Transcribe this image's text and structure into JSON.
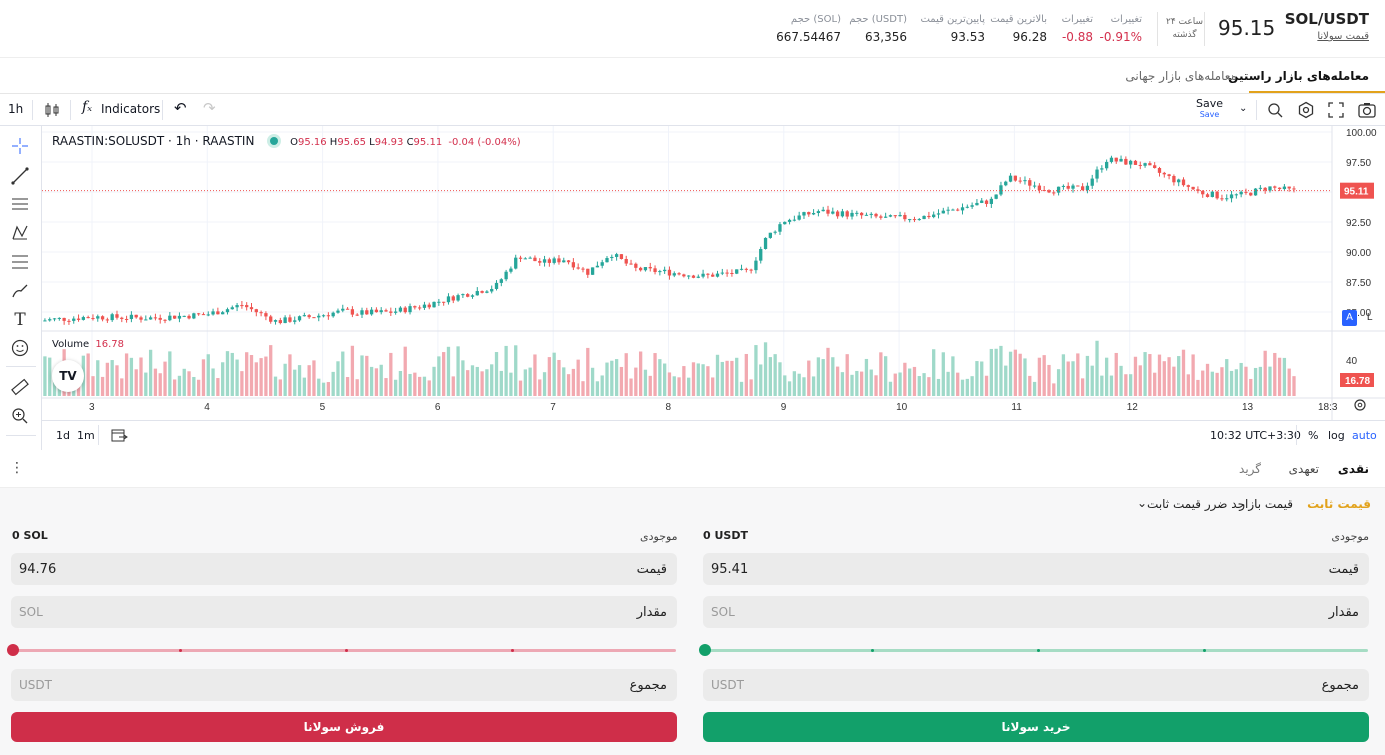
{
  "market": {
    "pair": "SOL/USDT",
    "name_link": "قیمت سولانا",
    "last_price": "95.15",
    "period_label_1": "۲۴ ساعت",
    "period_label_2": "گذشته"
  },
  "stats": [
    {
      "label": "تغییرات",
      "value": "-0.91%",
      "tone": "red"
    },
    {
      "label": "تغییرات",
      "value": "-0.88",
      "tone": "red"
    },
    {
      "label": "بالاترین قیمت",
      "value": "96.28",
      "tone": ""
    },
    {
      "label": "پایین‌ترین قیمت",
      "value": "93.53",
      "tone": ""
    },
    {
      "label": "حجم (USDT)",
      "value": "63,356",
      "tone": ""
    },
    {
      "label": "حجم (SOL)",
      "value": "667.54467",
      "tone": ""
    }
  ],
  "tabs": {
    "active": "معامله‌های بازار راستین",
    "inactive": "معامله‌های بازار جهانی"
  },
  "toolbar": {
    "interval": "1h",
    "indicators": "Indicators",
    "save": "Save",
    "save_sub": "Save"
  },
  "chart_data": {
    "type": "candlestick",
    "symbol_title": "RAASTIN:SOLUSDT · 1h · RAASTIN",
    "ohlc": {
      "o_label": "O",
      "o": "95.16",
      "h_label": "H",
      "h": "95.65",
      "l_label": "L",
      "l": "94.93",
      "c_label": "C",
      "c": "95.11",
      "change": "-0.04 (-0.04%)"
    },
    "price_axis_ticks": [
      "100.00",
      "97.50",
      "95.00",
      "92.50",
      "90.00",
      "87.50",
      "85.00"
    ],
    "ylim": [
      83.5,
      100.5
    ],
    "last_price_label": "95.11",
    "last_price": 95.11,
    "x_tick_labels": [
      "3",
      "4",
      "5",
      "6",
      "7",
      "8",
      "9",
      "10",
      "11",
      "12",
      "13",
      "18:3"
    ],
    "volume_label": "Volume",
    "volume_value": "16.78",
    "volume_axis_tick": "40",
    "volume_last_label": "16.78",
    "close_path": [
      {
        "day": 2.55,
        "close": 84.3
      },
      {
        "day": 3.0,
        "close": 84.6
      },
      {
        "day": 3.5,
        "close": 84.5
      },
      {
        "day": 4.0,
        "close": 84.8
      },
      {
        "day": 4.3,
        "close": 85.6
      },
      {
        "day": 4.6,
        "close": 84.2
      },
      {
        "day": 4.9,
        "close": 84.6
      },
      {
        "day": 5.2,
        "close": 85.1
      },
      {
        "day": 5.3,
        "close": 84.9
      },
      {
        "day": 5.6,
        "close": 85.0
      },
      {
        "day": 5.9,
        "close": 85.6
      },
      {
        "day": 6.2,
        "close": 86.4
      },
      {
        "day": 6.5,
        "close": 87.1
      },
      {
        "day": 6.7,
        "close": 89.7
      },
      {
        "day": 6.9,
        "close": 89.1
      },
      {
        "day": 7.1,
        "close": 89.4
      },
      {
        "day": 7.3,
        "close": 88.3
      },
      {
        "day": 7.5,
        "close": 89.9
      },
      {
        "day": 7.7,
        "close": 88.6
      },
      {
        "day": 8.0,
        "close": 88.3
      },
      {
        "day": 8.3,
        "close": 88.0
      },
      {
        "day": 8.7,
        "close": 88.4
      },
      {
        "day": 8.85,
        "close": 91.2
      },
      {
        "day": 9.0,
        "close": 92.6
      },
      {
        "day": 9.3,
        "close": 93.4
      },
      {
        "day": 9.6,
        "close": 93.1
      },
      {
        "day": 9.9,
        "close": 92.8
      },
      {
        "day": 10.2,
        "close": 92.9
      },
      {
        "day": 10.5,
        "close": 93.6
      },
      {
        "day": 10.8,
        "close": 94.3
      },
      {
        "day": 10.95,
        "close": 96.2
      },
      {
        "day": 11.3,
        "close": 95.2
      },
      {
        "day": 11.6,
        "close": 95.3
      },
      {
        "day": 11.8,
        "close": 97.7
      },
      {
        "day": 12.1,
        "close": 97.3
      },
      {
        "day": 12.3,
        "close": 96.4
      },
      {
        "day": 12.6,
        "close": 95.0
      },
      {
        "day": 12.8,
        "close": 94.6
      },
      {
        "day": 13.0,
        "close": 94.8
      },
      {
        "day": 13.2,
        "close": 95.4
      },
      {
        "day": 13.4,
        "close": 95.11
      }
    ]
  },
  "bottombar": {
    "r1": "1d",
    "r2": "1m",
    "time": "10:32 UTC+3:30",
    "pct": "%",
    "log": "log",
    "auto": "auto"
  },
  "order_tabs": {
    "spot": "نقدی",
    "margin": "تعهدی",
    "grid": "گرید"
  },
  "order_types": {
    "limit": "قیمت ثابت",
    "market": "قیمت بازار",
    "stop": "حد ضرر قیمت ثابت"
  },
  "buy": {
    "balance_label": "موجودی",
    "balance_value": "0 USDT",
    "price_label": "قیمت",
    "price_value": "95.41",
    "amount_label": "مقدار",
    "amount_placeholder": "SOL",
    "total_label": "مجموع",
    "total_placeholder": "USDT",
    "button": "خرید سولانا",
    "color": "#12a06a"
  },
  "sell": {
    "balance_label": "موجودی",
    "balance_value": "0 SOL",
    "price_label": "قیمت",
    "price_value": "94.76",
    "amount_label": "مقدار",
    "amount_placeholder": "SOL",
    "total_label": "مجموع",
    "total_placeholder": "USDT",
    "button": "فروش سولانا",
    "color": "#cf2e49"
  }
}
